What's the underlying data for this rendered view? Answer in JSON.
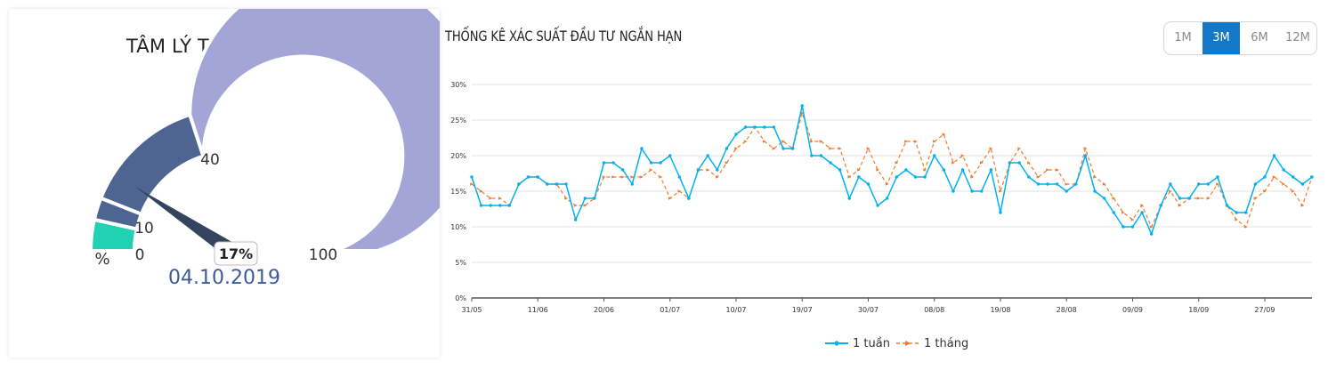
{
  "gauge": {
    "title": "TÂM LÝ THỊ TRƯỜNG",
    "value": 17,
    "value_label": "17%",
    "unit_label": "%",
    "date": "04.10.2019",
    "scale_labels": [
      "0",
      "10",
      "40",
      "100"
    ],
    "bands": [
      {
        "from": 0,
        "to": 7,
        "color": "#20d2b2"
      },
      {
        "from": 7,
        "to": 12,
        "color": "#4e6591"
      },
      {
        "from": 12,
        "to": 40,
        "color": "#4e6591"
      },
      {
        "from": 40,
        "to": 100,
        "color": "#a2a5d6"
      }
    ],
    "needle_color": "#34445f"
  },
  "chart": {
    "title": "THỐNG KÊ XÁC SUẤT ĐẦU TƯ NGẮN HẠN",
    "range_buttons": [
      {
        "label": "1M",
        "active": false
      },
      {
        "label": "3M",
        "active": true
      },
      {
        "label": "6M",
        "active": false
      },
      {
        "label": "12M",
        "active": false
      }
    ]
  },
  "chart_data": {
    "type": "line",
    "title": "THỐNG KÊ XÁC SUẤT ĐẦU TƯ NGẮN HẠN",
    "xlabel": "",
    "ylabel": "",
    "ylim": [
      0,
      30
    ],
    "yticks": [
      "0%",
      "5%",
      "10%",
      "15%",
      "20%",
      "25%",
      "30%"
    ],
    "xticks": [
      {
        "label": "31/05",
        "index": 0
      },
      {
        "label": "11/06",
        "index": 7
      },
      {
        "label": "20/06",
        "index": 14
      },
      {
        "label": "01/07",
        "index": 21
      },
      {
        "label": "10/07",
        "index": 28
      },
      {
        "label": "19/07",
        "index": 35
      },
      {
        "label": "30/07",
        "index": 42
      },
      {
        "label": "08/08",
        "index": 49
      },
      {
        "label": "19/08",
        "index": 56
      },
      {
        "label": "28/08",
        "index": 63
      },
      {
        "label": "09/09",
        "index": 70
      },
      {
        "label": "18/09",
        "index": 77
      },
      {
        "label": "27/09",
        "index": 84
      }
    ],
    "grid": true,
    "legend_position": "bottom",
    "series": [
      {
        "name": "1 tuần",
        "color": "#00b2f0",
        "dashed": false,
        "values": [
          17,
          13,
          13,
          13,
          13,
          16,
          17,
          17,
          16,
          16,
          16,
          11,
          14,
          14,
          19,
          19,
          18,
          16,
          21,
          19,
          19,
          20,
          17,
          14,
          18,
          20,
          18,
          21,
          23,
          24,
          24,
          24,
          24,
          21,
          21,
          27,
          20,
          20,
          19,
          18,
          14,
          17,
          16,
          13,
          14,
          17,
          18,
          17,
          17,
          20,
          18,
          15,
          18,
          15,
          15,
          18,
          12,
          19,
          19,
          17,
          16,
          16,
          16,
          15,
          16,
          20,
          15,
          14,
          12,
          10,
          10,
          12,
          9,
          13,
          16,
          14,
          14,
          16,
          16,
          17,
          13,
          12,
          12,
          16,
          17,
          20,
          18,
          17,
          16,
          17
        ]
      },
      {
        "name": "1 tháng",
        "color": "#ef7b2c",
        "dashed": true,
        "values": [
          16,
          15,
          14,
          14,
          13,
          16,
          17,
          17,
          16,
          16,
          14,
          13,
          13,
          14,
          17,
          17,
          17,
          17,
          17,
          18,
          17,
          14,
          15,
          14,
          18,
          18,
          17,
          19,
          21,
          22,
          24,
          22,
          21,
          22,
          21,
          26,
          22,
          22,
          21,
          21,
          17,
          18,
          21,
          18,
          16,
          19,
          22,
          22,
          18,
          22,
          23,
          19,
          20,
          17,
          19,
          21,
          15,
          19,
          21,
          19,
          17,
          18,
          18,
          16,
          16,
          21,
          17,
          16,
          14,
          12,
          11,
          13,
          10,
          13,
          15,
          13,
          14,
          14,
          14,
          16,
          13,
          11,
          10,
          14,
          15,
          17,
          16,
          15,
          13,
          17
        ]
      }
    ]
  }
}
